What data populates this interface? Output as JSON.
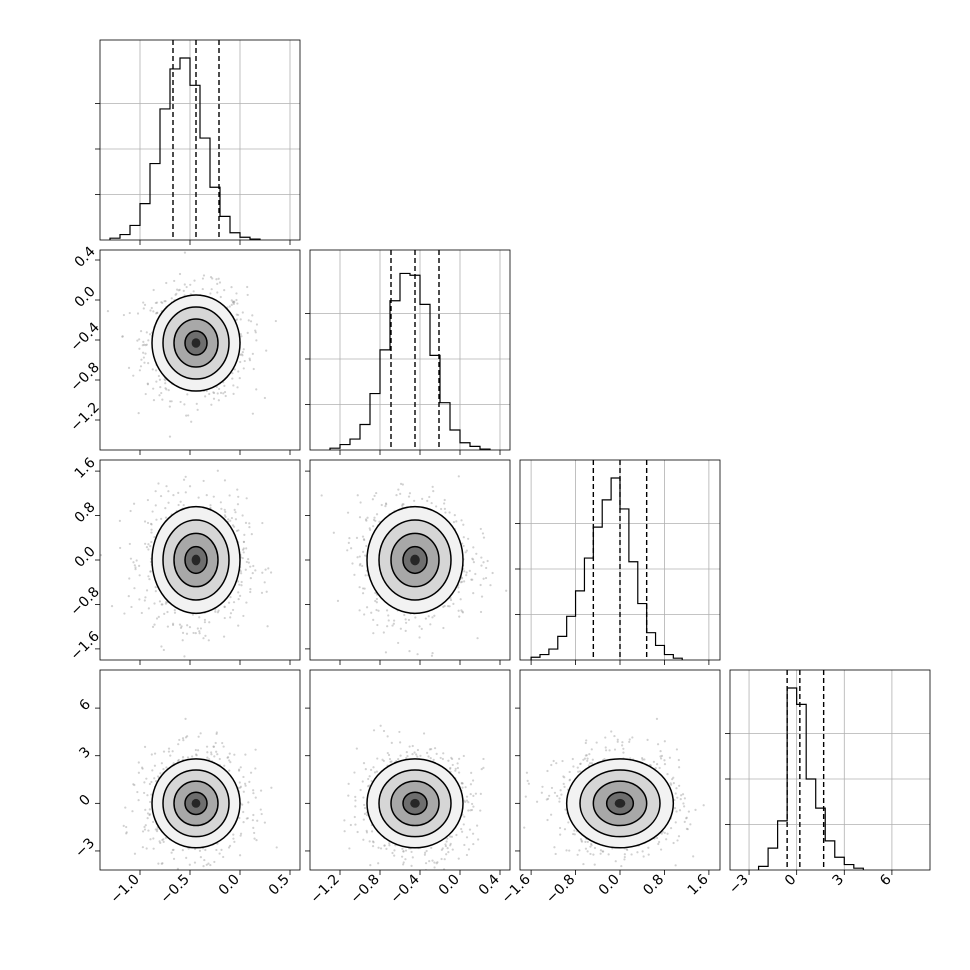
{
  "figure": {
    "type": "corner-plot",
    "chart_data": [
      {
        "type": "histogram",
        "param_index": 0,
        "xlim": [
          -1.4,
          0.6
        ],
        "xticks": [
          -1.0,
          -0.5,
          0.0,
          0.5
        ],
        "xtick_labels": [
          "−1.0",
          "−0.5",
          "0.0",
          "0.5"
        ],
        "ymax": 1.0,
        "bin_width": 0.1,
        "bin_start": -1.3,
        "counts": [
          0.01,
          0.03,
          0.08,
          0.2,
          0.42,
          0.72,
          0.94,
          1.0,
          0.85,
          0.56,
          0.29,
          0.13,
          0.04,
          0.015,
          0.005
        ],
        "quantiles": [
          -0.67,
          -0.44,
          -0.21
        ],
        "grid": true
      },
      {
        "type": "histogram",
        "param_index": 1,
        "xlim": [
          -1.5,
          0.5
        ],
        "xticks": [
          -1.2,
          -0.8,
          -0.4,
          0.0,
          0.4
        ],
        "xtick_labels": [
          "−1.2",
          "−0.8",
          "−0.4",
          "0.0",
          "0.4"
        ],
        "ymax": 1.0,
        "bin_width": 0.1,
        "bin_start": -1.3,
        "counts": [
          0.01,
          0.03,
          0.06,
          0.14,
          0.31,
          0.55,
          0.82,
          0.97,
          0.96,
          0.8,
          0.52,
          0.26,
          0.11,
          0.04,
          0.02,
          0.005
        ],
        "quantiles": [
          -0.69,
          -0.45,
          -0.21
        ],
        "grid": true
      },
      {
        "type": "histogram",
        "param_index": 2,
        "xlim": [
          -1.8,
          1.8
        ],
        "xticks": [
          -1.6,
          -0.8,
          0.0,
          0.8,
          1.6
        ],
        "xtick_labels": [
          "−1.6",
          "−0.8",
          "0.0",
          "0.8",
          "1.6"
        ],
        "ymax": 1.0,
        "bin_width": 0.16,
        "bin_start": -1.6,
        "counts": [
          0.015,
          0.03,
          0.06,
          0.13,
          0.24,
          0.38,
          0.56,
          0.73,
          0.88,
          1.0,
          0.83,
          0.54,
          0.31,
          0.15,
          0.08,
          0.03,
          0.01
        ],
        "quantiles": [
          -0.48,
          0.0,
          0.48
        ],
        "grid": true
      },
      {
        "type": "histogram",
        "param_index": 3,
        "xlim": [
          -4.2,
          8.4
        ],
        "xticks": [
          -3,
          0,
          3,
          6
        ],
        "xtick_labels": [
          "−3",
          "0",
          "3",
          "6"
        ],
        "ymax": 1.0,
        "bin_width": 0.6,
        "bin_start": -2.4,
        "counts": [
          0.02,
          0.12,
          0.27,
          1.0,
          0.91,
          0.5,
          0.34,
          0.16,
          0.07,
          0.03,
          0.01
        ],
        "quantiles": [
          -0.6,
          0.2,
          1.7
        ],
        "grid": true
      },
      {
        "type": "contour",
        "x_param": 0,
        "y_param": 1,
        "yticks": [
          -1.2,
          -0.8,
          -0.4,
          0.0,
          0.4
        ],
        "ytick_labels": [
          "−1.2",
          "−0.8",
          "−0.4",
          "0.0",
          "0.4"
        ],
        "center": [
          -0.44,
          -0.43
        ],
        "sigma": [
          0.22,
          0.24
        ],
        "grid": true
      },
      {
        "type": "contour",
        "x_param": 0,
        "y_param": 2,
        "yticks": [
          -1.6,
          -0.8,
          0.0,
          0.8,
          1.6
        ],
        "ytick_labels": [
          "−1.6",
          "−0.8",
          "0.0",
          "0.8",
          "1.6"
        ],
        "center": [
          -0.44,
          0.0
        ],
        "sigma": [
          0.22,
          0.48
        ],
        "grid": true
      },
      {
        "type": "contour",
        "x_param": 1,
        "y_param": 2,
        "center": [
          -0.45,
          0.0
        ],
        "sigma": [
          0.24,
          0.48
        ],
        "grid": true
      },
      {
        "type": "contour",
        "x_param": 0,
        "y_param": 3,
        "yticks": [
          -3,
          0,
          3,
          6
        ],
        "ytick_labels": [
          "−3",
          "0",
          "3",
          "6"
        ],
        "center": [
          -0.44,
          0.0
        ],
        "sigma": [
          0.22,
          1.4
        ],
        "grid": true
      },
      {
        "type": "contour",
        "x_param": 1,
        "y_param": 3,
        "center": [
          -0.45,
          0.0
        ],
        "sigma": [
          0.24,
          1.4
        ],
        "grid": true
      },
      {
        "type": "contour",
        "x_param": 2,
        "y_param": 3,
        "center": [
          0.0,
          0.0
        ],
        "sigma": [
          0.48,
          1.4
        ],
        "grid": true
      }
    ]
  }
}
